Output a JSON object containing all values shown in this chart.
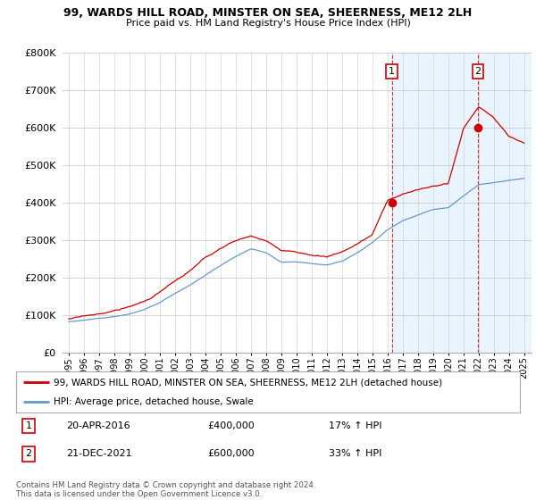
{
  "title": "99, WARDS HILL ROAD, MINSTER ON SEA, SHEERNESS, ME12 2LH",
  "subtitle": "Price paid vs. HM Land Registry's House Price Index (HPI)",
  "yticks": [
    0,
    100000,
    200000,
    300000,
    400000,
    500000,
    600000,
    700000,
    800000
  ],
  "ytick_labels": [
    "£0",
    "£100K",
    "£200K",
    "£300K",
    "£400K",
    "£500K",
    "£600K",
    "£700K",
    "£800K"
  ],
  "sale1_x": 2016.29,
  "sale1_price": 400000,
  "sale1_date_str": "20-APR-2016",
  "sale2_x": 2021.96,
  "sale2_price": 600000,
  "sale2_date_str": "21-DEC-2021",
  "hpi_color": "#6699cc",
  "price_color": "#cc0000",
  "shade_color": "#ddeeff",
  "vline_color": "#cc0000",
  "legend_label_price": "99, WARDS HILL ROAD, MINSTER ON SEA, SHEERNESS, ME12 2LH (detached house)",
  "legend_label_hpi": "HPI: Average price, detached house, Swale",
  "footnote": "Contains HM Land Registry data © Crown copyright and database right 2024.\nThis data is licensed under the Open Government Licence v3.0.",
  "background_color": "#ffffff",
  "grid_color": "#cccccc",
  "hpi_keypoints_x": [
    1995,
    1996,
    1997,
    1998,
    1999,
    2000,
    2001,
    2002,
    2003,
    2004,
    2005,
    2006,
    2007,
    2008,
    2009,
    2010,
    2011,
    2012,
    2013,
    2014,
    2015,
    2016,
    2017,
    2018,
    2019,
    2020,
    2021,
    2022,
    2023,
    2024,
    2025
  ],
  "hpi_keypoints_y": [
    78000,
    82000,
    87000,
    93000,
    100000,
    112000,
    130000,
    155000,
    178000,
    205000,
    230000,
    255000,
    275000,
    265000,
    240000,
    242000,
    238000,
    235000,
    245000,
    268000,
    295000,
    330000,
    355000,
    370000,
    385000,
    390000,
    420000,
    450000,
    455000,
    460000,
    465000
  ],
  "price_keypoints_x": [
    1995,
    1996,
    1997,
    1998,
    1999,
    2000,
    2001,
    2002,
    2003,
    2004,
    2005,
    2006,
    2007,
    2008,
    2009,
    2010,
    2011,
    2012,
    2013,
    2014,
    2015,
    2016,
    2017,
    2018,
    2019,
    2020,
    2021,
    2022,
    2023,
    2024,
    2025
  ],
  "price_keypoints_y": [
    95000,
    100000,
    107000,
    115000,
    125000,
    140000,
    165000,
    192000,
    218000,
    250000,
    275000,
    295000,
    310000,
    295000,
    268000,
    265000,
    258000,
    252000,
    265000,
    285000,
    310000,
    400000,
    420000,
    430000,
    445000,
    455000,
    600000,
    660000,
    630000,
    580000,
    565000
  ],
  "noise_seed": 12,
  "hpi_noise": 2500,
  "price_noise": 3500
}
